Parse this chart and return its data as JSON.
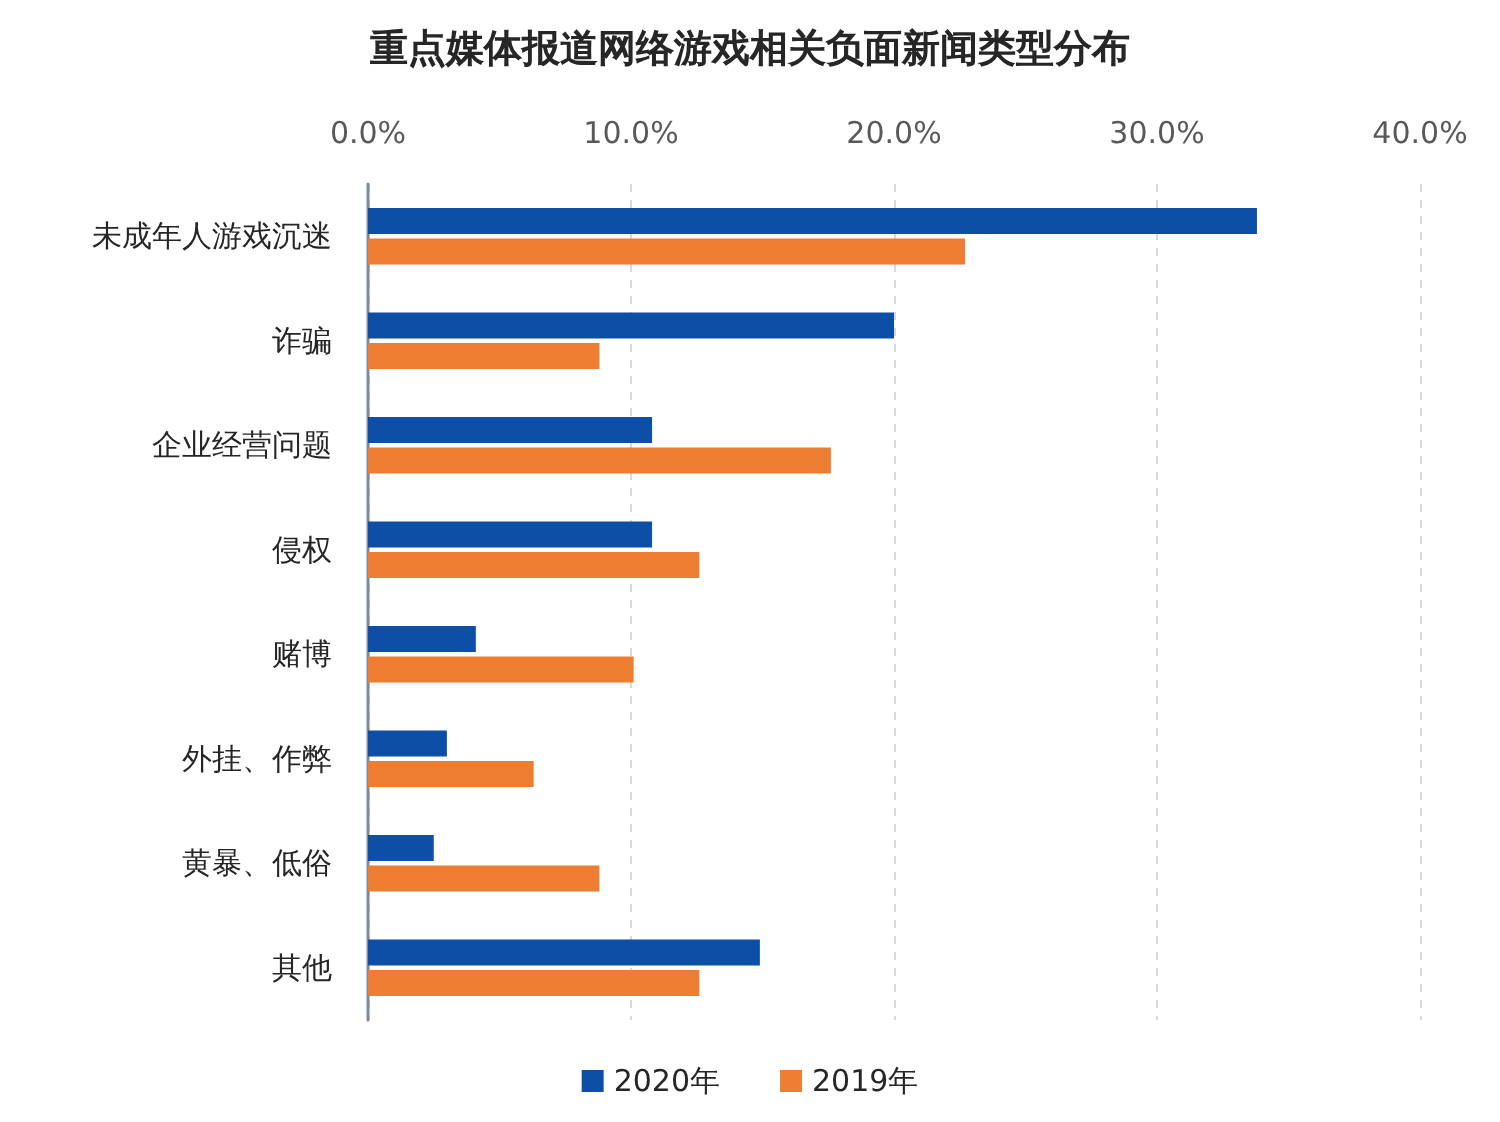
{
  "chart_data": {
    "type": "bar",
    "orientation": "horizontal",
    "title": "重点媒体报道网络游戏相关负面新闻类型分布",
    "categories": [
      "未成年人游戏沉迷",
      "诈骗",
      "企业经营问题",
      "侵权",
      "赌博",
      "外挂、作弊",
      "黄暴、低俗",
      "其他"
    ],
    "series": [
      {
        "name": "2020年",
        "color": "#0d4ea6",
        "values": [
          33.8,
          20.0,
          10.8,
          10.8,
          4.1,
          3.0,
          2.5,
          14.9
        ]
      },
      {
        "name": "2019年",
        "color": "#ed7d31",
        "values": [
          22.7,
          8.8,
          17.6,
          12.6,
          10.1,
          6.3,
          8.8,
          12.6
        ]
      }
    ],
    "xlim": [
      0,
      40
    ],
    "xticks": [
      {
        "value": 0,
        "label": "0.0%"
      },
      {
        "value": 10,
        "label": "10.0%"
      },
      {
        "value": 20,
        "label": "20.0%"
      },
      {
        "value": 30,
        "label": "30.0%"
      },
      {
        "value": 40,
        "label": "40.0%"
      }
    ],
    "grid": "x",
    "legend": "bottom"
  }
}
